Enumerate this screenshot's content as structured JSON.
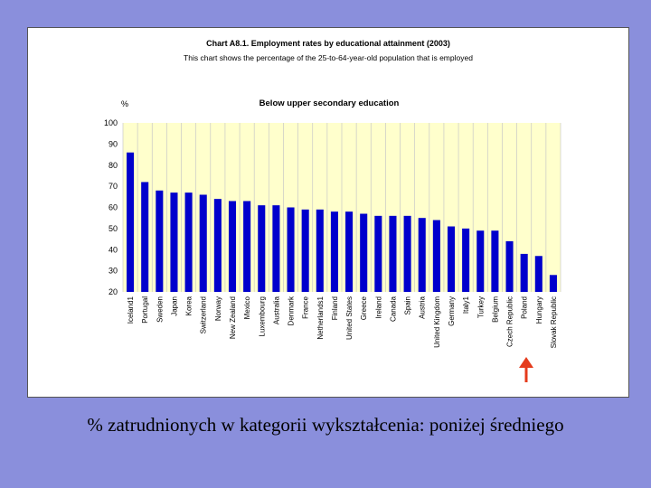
{
  "header": {
    "title": "Chart A8.1. Employment rates by educational attainment (2003)",
    "subtitle": "This chart shows the percentage of the 25-to-64-year-old population that is employed"
  },
  "caption": "% zatrudnionych w kategorii wykształcenia: poniżej średniego",
  "colors": {
    "background": "#8a8fdc",
    "plot_area": "#ffffcc",
    "bars": "#0000cc",
    "arrow": "#e53b1c"
  },
  "annotation": {
    "arrow_points_to": "Poland",
    "icon": "red-up-arrow-icon"
  },
  "chart_data": {
    "type": "bar",
    "title": "Below upper secondary education",
    "ylabel": "%",
    "ylim": [
      20,
      100
    ],
    "yticks": [
      20,
      30,
      40,
      50,
      60,
      70,
      80,
      90,
      100
    ],
    "grid": "vertical",
    "categories": [
      "Iceland1",
      "Portugal",
      "Sweden",
      "Japan",
      "Korea",
      "Switzerland",
      "Norway",
      "New Zealand",
      "Mexico",
      "Luxembourg",
      "Australia",
      "Denmark",
      "France",
      "Netherlands1",
      "Finland",
      "United States",
      "Greece",
      "Ireland",
      "Canada",
      "Spain",
      "Austria",
      "United Kingdom",
      "Germany",
      "Italy1",
      "Turkey",
      "Belgium",
      "Czech Republic",
      "Poland",
      "Hungary",
      "Slovak Republic"
    ],
    "values": [
      86,
      72,
      68,
      67,
      67,
      66,
      64,
      63,
      63,
      61,
      61,
      60,
      59,
      59,
      58,
      58,
      57,
      56,
      56,
      56,
      55,
      54,
      51,
      50,
      49,
      49,
      44,
      38,
      37,
      28
    ]
  }
}
